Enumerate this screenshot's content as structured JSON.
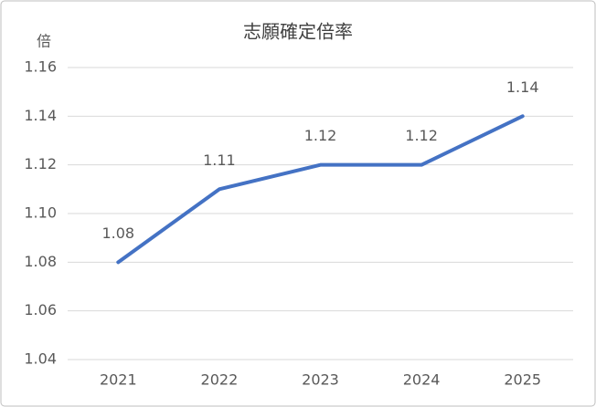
{
  "chart_data": {
    "type": "line",
    "title": "志願確定倍率",
    "y_label": "倍",
    "categories": [
      "2021",
      "2022",
      "2023",
      "2024",
      "2025"
    ],
    "values": [
      1.08,
      1.11,
      1.12,
      1.12,
      1.14
    ],
    "color": "#4472c4",
    "ylim": [
      1.04,
      1.16
    ],
    "yticks": [
      1.04,
      1.06,
      1.08,
      {
        "value": 1.1,
        "label": "1.10"
      },
      1.12,
      1.14,
      1.16
    ],
    "grid": true,
    "data_labels": true
  }
}
